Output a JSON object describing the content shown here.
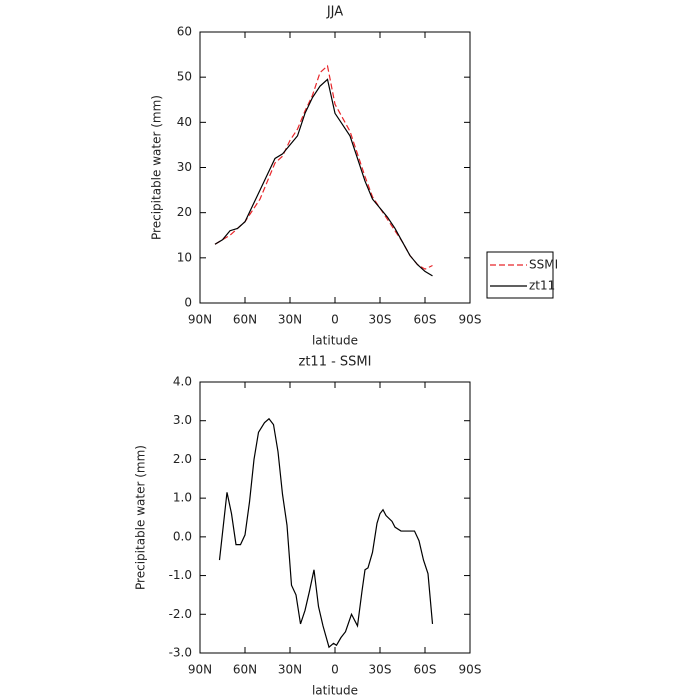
{
  "chart_data": [
    {
      "type": "line",
      "title": "JJA",
      "x_label": "latitude",
      "y_label": "Precipitable water (mm)",
      "x": [
        80,
        75,
        70,
        65,
        60,
        55,
        50,
        45,
        40,
        35,
        30,
        25,
        20,
        15,
        10,
        5,
        0,
        -5,
        -10,
        -15,
        -20,
        -25,
        -30,
        -35,
        -40,
        -45,
        -50,
        -55,
        -60,
        -65
      ],
      "series": [
        {
          "name": "SSMI",
          "color": "#e8262a",
          "linestyle": "dashed",
          "values": [
            13,
            14,
            15,
            16.5,
            18,
            20.5,
            23,
            27,
            31,
            32.5,
            36,
            38.5,
            42.5,
            46,
            51,
            52.5,
            44,
            41,
            38,
            33,
            28,
            23.5,
            21,
            18.5,
            16,
            13.5,
            10.5,
            8.5,
            7.5,
            8.3
          ]
        },
        {
          "name": "zt11",
          "color": "#000000",
          "linestyle": "solid",
          "values": [
            13,
            14,
            16,
            16.5,
            18,
            21.5,
            25,
            28.5,
            32,
            33,
            35,
            37,
            42,
            45.5,
            48,
            49.5,
            42,
            39.5,
            37,
            32,
            27,
            23,
            21,
            19,
            16.5,
            13.5,
            10.5,
            8.5,
            7,
            6
          ]
        }
      ],
      "xlim": [
        90,
        -90
      ],
      "xticks": [
        {
          "value": 90,
          "label": "90N"
        },
        {
          "value": 60,
          "label": "60N"
        },
        {
          "value": 30,
          "label": "30N"
        },
        0,
        {
          "value": -30,
          "label": "30S"
        },
        {
          "value": -60,
          "label": "60S"
        },
        {
          "value": -90,
          "label": "90S"
        }
      ],
      "ylim": [
        0,
        60
      ],
      "yticks": [
        0,
        10,
        20,
        30,
        40,
        50,
        60
      ],
      "legend": "right"
    },
    {
      "type": "line",
      "title": "zt11 - SSMI",
      "x_label": "latitude",
      "y_label": "Precipitable water (mm)",
      "x": [
        77,
        72,
        69,
        66,
        63,
        60,
        57,
        54,
        51,
        47,
        44,
        41,
        38,
        35,
        32,
        29,
        26,
        23,
        20,
        17,
        14,
        11,
        8,
        4,
        1,
        -1,
        -4,
        -7,
        -11,
        -15,
        -18,
        -20,
        -22,
        -25,
        -28,
        -30,
        -32,
        -34,
        -38,
        -40,
        -44,
        -50,
        -53,
        -56,
        -59,
        -62,
        -65
      ],
      "values": [
        -0.6,
        1.15,
        0.6,
        -0.2,
        -0.2,
        0.05,
        0.9,
        2.0,
        2.7,
        2.95,
        3.05,
        2.9,
        2.2,
        1.1,
        0.3,
        -1.25,
        -1.5,
        -2.25,
        -1.9,
        -1.4,
        -0.85,
        -1.8,
        -2.3,
        -2.85,
        -2.75,
        -2.8,
        -2.6,
        -2.45,
        -2.0,
        -2.3,
        -1.4,
        -0.85,
        -0.8,
        -0.4,
        0.35,
        0.6,
        0.7,
        0.55,
        0.4,
        0.25,
        0.15,
        0.15,
        0.15,
        -0.1,
        -0.6,
        -0.95,
        -2.25
      ],
      "color": "#000000",
      "xlim": [
        90,
        -90
      ],
      "xticks": [
        {
          "value": 90,
          "label": "90N"
        },
        {
          "value": 60,
          "label": "60N"
        },
        {
          "value": 30,
          "label": "30N"
        },
        0,
        {
          "value": -30,
          "label": "30S"
        },
        {
          "value": -60,
          "label": "60S"
        },
        {
          "value": -90,
          "label": "90S"
        }
      ],
      "ylim": [
        -3,
        4
      ],
      "yticks": [
        {
          "value": -3,
          "label": "-3.0"
        },
        {
          "value": -2,
          "label": "-2.0"
        },
        {
          "value": -1,
          "label": "-1.0"
        },
        {
          "value": 0,
          "label": "0.0"
        },
        {
          "value": 1,
          "label": "1.0"
        },
        {
          "value": 2,
          "label": "2.0"
        },
        {
          "value": 3,
          "label": "3.0"
        },
        {
          "value": 4,
          "label": "4.0"
        }
      ]
    }
  ]
}
